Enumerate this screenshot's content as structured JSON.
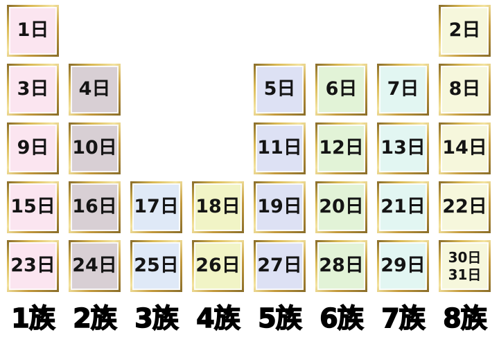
{
  "page": {
    "background_color": "#ffffff",
    "frame_gold_color": "#c3993c",
    "text_color": "#141414"
  },
  "groups": [
    {
      "label": "1族",
      "color": "#fbe5f0"
    },
    {
      "label": "2族",
      "color": "#d8cfd4"
    },
    {
      "label": "3族",
      "color": "#dfe9f7"
    },
    {
      "label": "4族",
      "color": "#f1f4c6"
    },
    {
      "label": "5族",
      "color": "#dde1f4"
    },
    {
      "label": "6族",
      "color": "#e2f3d7"
    },
    {
      "label": "7族",
      "color": "#e2f6f2"
    },
    {
      "label": "8族",
      "color": "#f6f7dc"
    }
  ],
  "cells": [
    {
      "row": 1,
      "col": 1,
      "lines": [
        "1日"
      ]
    },
    {
      "row": 1,
      "col": 8,
      "lines": [
        "2日"
      ]
    },
    {
      "row": 2,
      "col": 1,
      "lines": [
        "3日"
      ]
    },
    {
      "row": 2,
      "col": 2,
      "lines": [
        "4日"
      ]
    },
    {
      "row": 2,
      "col": 5,
      "lines": [
        "5日"
      ]
    },
    {
      "row": 2,
      "col": 6,
      "lines": [
        "6日"
      ]
    },
    {
      "row": 2,
      "col": 7,
      "lines": [
        "7日"
      ]
    },
    {
      "row": 2,
      "col": 8,
      "lines": [
        "8日"
      ]
    },
    {
      "row": 3,
      "col": 1,
      "lines": [
        "9日"
      ]
    },
    {
      "row": 3,
      "col": 2,
      "lines": [
        "10日"
      ]
    },
    {
      "row": 3,
      "col": 5,
      "lines": [
        "11日"
      ]
    },
    {
      "row": 3,
      "col": 6,
      "lines": [
        "12日"
      ]
    },
    {
      "row": 3,
      "col": 7,
      "lines": [
        "13日"
      ]
    },
    {
      "row": 3,
      "col": 8,
      "lines": [
        "14日"
      ]
    },
    {
      "row": 4,
      "col": 1,
      "lines": [
        "15日"
      ]
    },
    {
      "row": 4,
      "col": 2,
      "lines": [
        "16日"
      ]
    },
    {
      "row": 4,
      "col": 3,
      "lines": [
        "17日"
      ]
    },
    {
      "row": 4,
      "col": 4,
      "lines": [
        "18日"
      ]
    },
    {
      "row": 4,
      "col": 5,
      "lines": [
        "19日"
      ]
    },
    {
      "row": 4,
      "col": 6,
      "lines": [
        "20日"
      ]
    },
    {
      "row": 4,
      "col": 7,
      "lines": [
        "21日"
      ]
    },
    {
      "row": 4,
      "col": 8,
      "lines": [
        "22日"
      ]
    },
    {
      "row": 5,
      "col": 1,
      "lines": [
        "23日"
      ]
    },
    {
      "row": 5,
      "col": 2,
      "lines": [
        "24日"
      ]
    },
    {
      "row": 5,
      "col": 3,
      "lines": [
        "25日"
      ]
    },
    {
      "row": 5,
      "col": 4,
      "lines": [
        "26日"
      ]
    },
    {
      "row": 5,
      "col": 5,
      "lines": [
        "27日"
      ]
    },
    {
      "row": 5,
      "col": 6,
      "lines": [
        "28日"
      ]
    },
    {
      "row": 5,
      "col": 7,
      "lines": [
        "29日"
      ]
    },
    {
      "row": 5,
      "col": 8,
      "lines": [
        "30日",
        "31日"
      ]
    }
  ]
}
